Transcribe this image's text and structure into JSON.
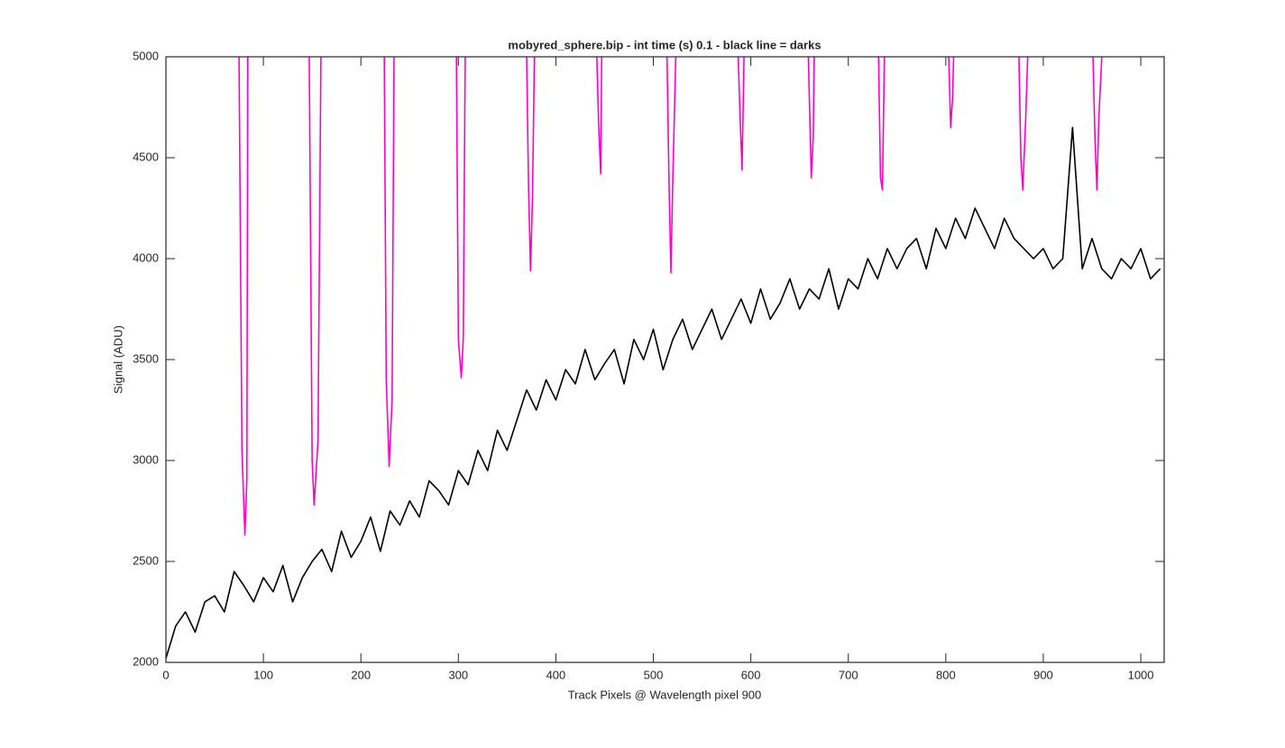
{
  "chart_data": {
    "type": "line",
    "title": "mobyred_sphere.bip - int time (s) 0.1 - black line = darks",
    "xlabel": "Track Pixels @ Wavelength pixel 900",
    "ylabel": "Signal (ADU)",
    "xlim": [
      0,
      1024
    ],
    "xticks": [
      0,
      100,
      200,
      300,
      400,
      500,
      600,
      700,
      800,
      900,
      1000
    ],
    "ylim": [
      2000,
      5000
    ],
    "yticks": [
      2000,
      2500,
      3000,
      3500,
      4000,
      4500,
      5000
    ],
    "grid": false,
    "series": [
      {
        "name": "darks",
        "color": "#000000",
        "x": [
          0,
          10,
          20,
          30,
          40,
          50,
          60,
          70,
          80,
          90,
          100,
          110,
          120,
          130,
          140,
          150,
          160,
          170,
          180,
          190,
          200,
          210,
          220,
          230,
          240,
          250,
          260,
          270,
          280,
          290,
          300,
          310,
          320,
          330,
          340,
          350,
          360,
          370,
          380,
          390,
          400,
          410,
          420,
          430,
          440,
          450,
          460,
          470,
          480,
          490,
          500,
          510,
          520,
          530,
          540,
          550,
          560,
          570,
          580,
          590,
          600,
          610,
          620,
          630,
          640,
          650,
          660,
          670,
          680,
          690,
          700,
          710,
          720,
          730,
          740,
          750,
          760,
          770,
          780,
          790,
          800,
          810,
          820,
          830,
          840,
          850,
          860,
          870,
          880,
          890,
          900,
          910,
          920,
          930,
          940,
          950,
          960,
          970,
          980,
          990,
          1000,
          1010,
          1020
        ],
        "values": [
          2020,
          2180,
          2250,
          2150,
          2300,
          2330,
          2250,
          2450,
          2380,
          2300,
          2420,
          2350,
          2480,
          2300,
          2420,
          2500,
          2560,
          2450,
          2650,
          2520,
          2600,
          2720,
          2550,
          2750,
          2680,
          2800,
          2720,
          2900,
          2850,
          2780,
          2950,
          2880,
          3050,
          2950,
          3150,
          3050,
          3200,
          3350,
          3250,
          3400,
          3300,
          3450,
          3380,
          3550,
          3400,
          3480,
          3550,
          3380,
          3600,
          3500,
          3650,
          3450,
          3600,
          3700,
          3550,
          3650,
          3750,
          3600,
          3700,
          3800,
          3680,
          3850,
          3700,
          3780,
          3900,
          3750,
          3850,
          3800,
          3950,
          3750,
          3900,
          3850,
          4000,
          3900,
          4050,
          3950,
          4050,
          4100,
          3950,
          4150,
          4050,
          4200,
          4100,
          4250,
          4150,
          4050,
          4200,
          4100,
          4050,
          4000,
          4050,
          3950,
          4000,
          4650,
          3950,
          4100,
          3950,
          3900,
          4000,
          3950,
          4050,
          3900,
          3950
        ]
      },
      {
        "name": "track",
        "color": "#ff00cc",
        "x": [
          75,
          78,
          81,
          83,
          84,
          115,
          147,
          150,
          152,
          156,
          159,
          190,
          224,
          226,
          229,
          232,
          234,
          265,
          298,
          300,
          303,
          305,
          307,
          340,
          370,
          372,
          374,
          376,
          378,
          410,
          442,
          444,
          446,
          447,
          480,
          514,
          516,
          518,
          520,
          523,
          555,
          587,
          589,
          591,
          593,
          625,
          659,
          662,
          664,
          665,
          700,
          731,
          733,
          735,
          737,
          770,
          803,
          805,
          807,
          808,
          840,
          875,
          877,
          879,
          882,
          884,
          915,
          951,
          953,
          955,
          957,
          960
        ],
        "values": [
          5000,
          3050,
          2630,
          2900,
          5000,
          null,
          5000,
          3000,
          2780,
          3100,
          5000,
          null,
          5000,
          3400,
          2970,
          3300,
          5000,
          null,
          5000,
          3600,
          3410,
          3600,
          5000,
          null,
          5000,
          4350,
          3940,
          4300,
          5000,
          null,
          5000,
          4650,
          4420,
          5000,
          null,
          5000,
          4400,
          3930,
          4400,
          5000,
          null,
          5000,
          4700,
          4440,
          5000,
          null,
          5000,
          4400,
          4600,
          5000,
          null,
          5000,
          4400,
          4340,
          5000,
          null,
          5000,
          4650,
          4800,
          5000,
          null,
          5000,
          4500,
          4340,
          4700,
          5000,
          null,
          5000,
          4600,
          4340,
          4700,
          5000
        ]
      }
    ]
  }
}
